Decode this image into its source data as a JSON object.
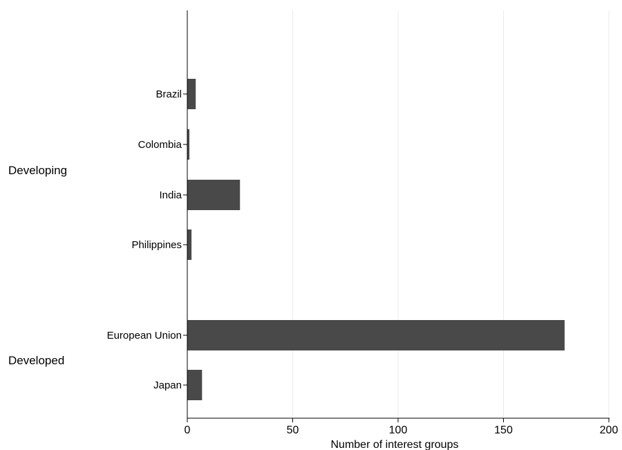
{
  "chart_data": {
    "type": "bar",
    "orientation": "horizontal",
    "xlabel": "Number of interest groups",
    "xlim": [
      0,
      205
    ],
    "xticks": [
      0,
      50,
      100,
      150,
      200
    ],
    "grid": "vertical",
    "bar_color": "#494949",
    "grid_color": "#ebebeb",
    "groups": [
      {
        "name": "Developing",
        "categories": [
          "Brazil",
          "Colombia",
          "India",
          "Philippines"
        ],
        "values": [
          4,
          1,
          25,
          2
        ]
      },
      {
        "name": "Developed",
        "categories": [
          "European Union",
          "Japan"
        ],
        "values": [
          179,
          7
        ]
      }
    ]
  }
}
